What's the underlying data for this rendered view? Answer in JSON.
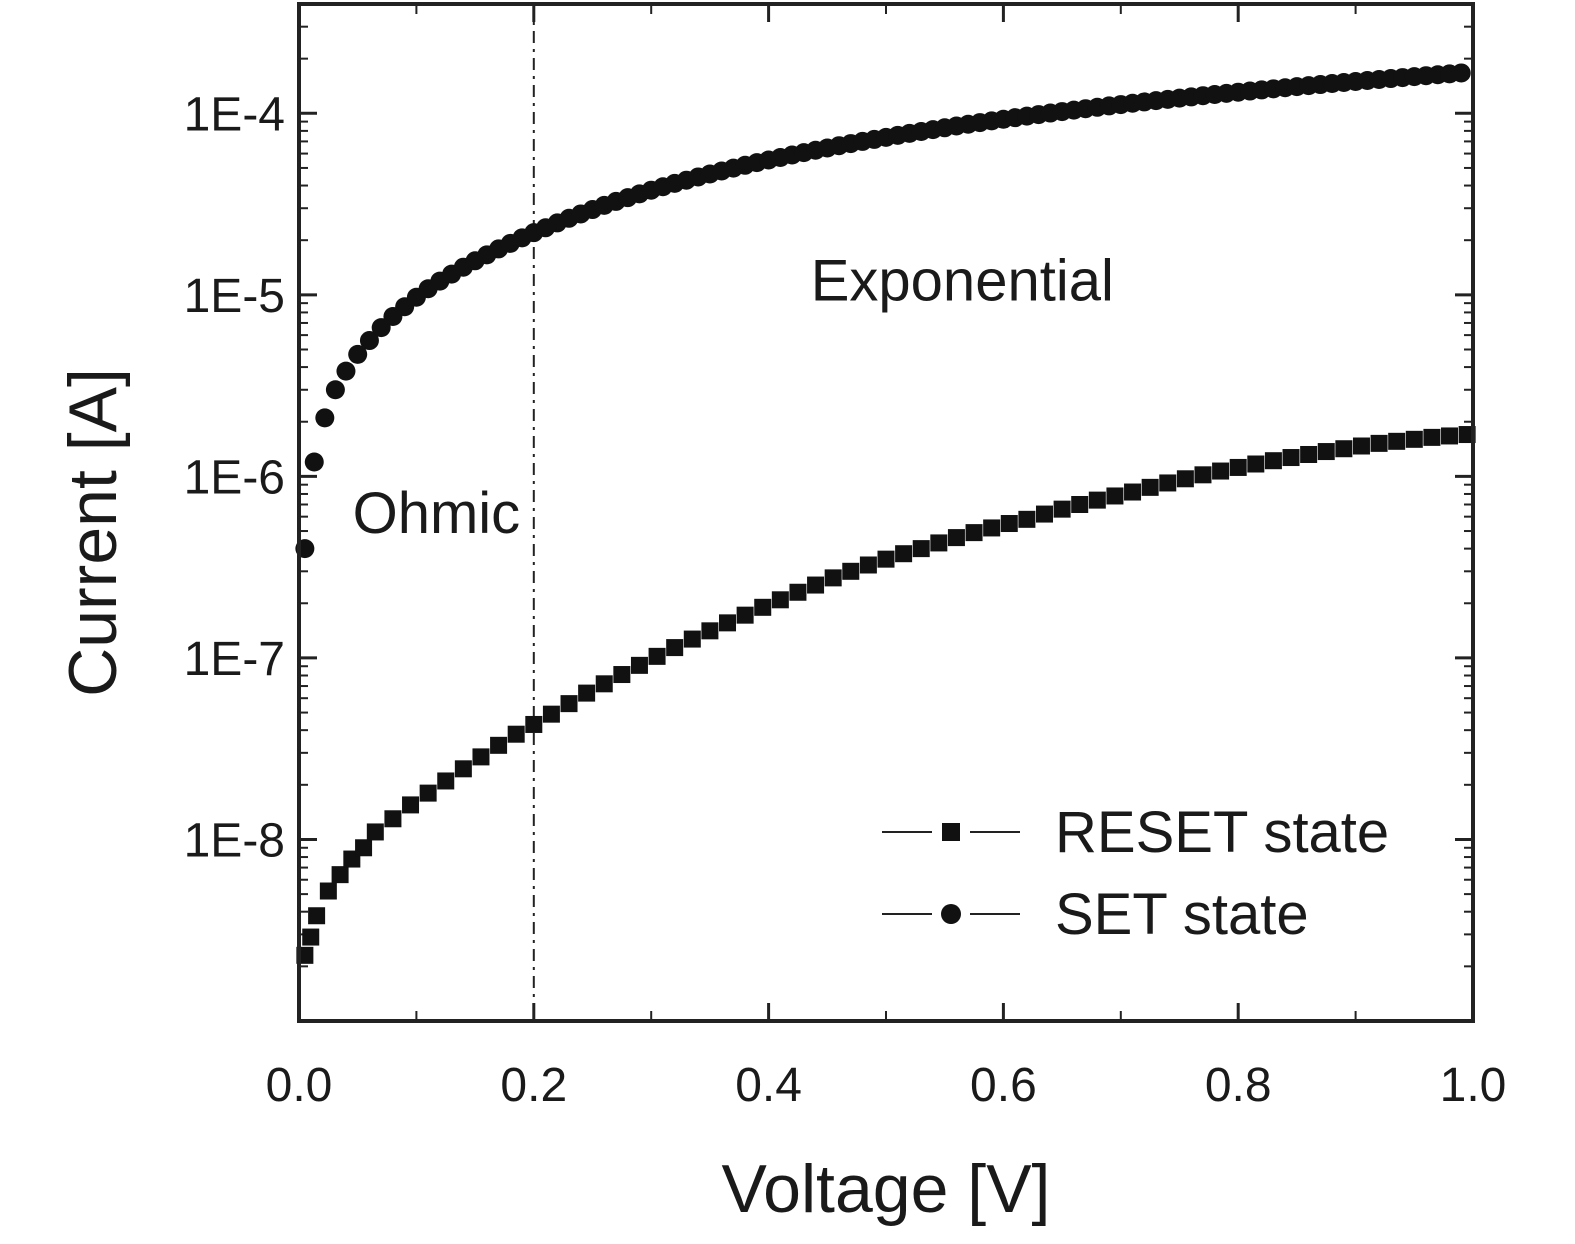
{
  "chart_data": {
    "type": "scatter",
    "xlabel": "Voltage [V]",
    "ylabel": "Current [A]",
    "xlim": [
      0,
      1.0
    ],
    "ylim": [
      1e-09,
      0.0004
    ],
    "yscale": "log",
    "xticks": [
      0.0,
      0.2,
      0.4,
      0.6,
      0.8,
      1.0
    ],
    "xtick_labels": [
      "0.0",
      "0.2",
      "0.4",
      "0.6",
      "0.8",
      "1.0"
    ],
    "yticks": [
      1e-08,
      1e-07,
      1e-06,
      1e-05,
      0.0001
    ],
    "ytick_labels": [
      "1E-8",
      "1E-7",
      "1E-6",
      "1E-5",
      "1E-4"
    ],
    "vline": {
      "x": 0.2,
      "style": "dashed"
    },
    "annotations": [
      {
        "text": "Ohmic",
        "x": 0.1,
        "y": 6.3e-07
      },
      {
        "text": "Exponential",
        "x": 0.565,
        "y": 1.2e-05
      }
    ],
    "legend": {
      "position": "bottom-right"
    },
    "series": [
      {
        "name": "RESET state",
        "marker": "square",
        "color": "#111111",
        "x": [
          0.005,
          0.01,
          0.015,
          0.025,
          0.035,
          0.045,
          0.055,
          0.065,
          0.08,
          0.095,
          0.11,
          0.125,
          0.14,
          0.155,
          0.17,
          0.185,
          0.2,
          0.215,
          0.23,
          0.245,
          0.26,
          0.275,
          0.29,
          0.305,
          0.32,
          0.335,
          0.35,
          0.365,
          0.38,
          0.395,
          0.41,
          0.425,
          0.44,
          0.455,
          0.47,
          0.485,
          0.5,
          0.515,
          0.53,
          0.545,
          0.56,
          0.575,
          0.59,
          0.605,
          0.62,
          0.635,
          0.65,
          0.665,
          0.68,
          0.695,
          0.71,
          0.725,
          0.74,
          0.755,
          0.77,
          0.785,
          0.8,
          0.815,
          0.83,
          0.845,
          0.86,
          0.875,
          0.89,
          0.905,
          0.92,
          0.935,
          0.95,
          0.965,
          0.98,
          0.995
        ],
        "y": [
          2.3e-09,
          2.9e-09,
          3.8e-09,
          5.2e-09,
          6.4e-09,
          7.8e-09,
          9e-09,
          1.1e-08,
          1.3e-08,
          1.55e-08,
          1.8e-08,
          2.1e-08,
          2.45e-08,
          2.85e-08,
          3.3e-08,
          3.8e-08,
          4.3e-08,
          4.9e-08,
          5.6e-08,
          6.4e-08,
          7.2e-08,
          8.1e-08,
          9.1e-08,
          1.02e-07,
          1.14e-07,
          1.27e-07,
          1.41e-07,
          1.56e-07,
          1.72e-07,
          1.9e-07,
          2.09e-07,
          2.3e-07,
          2.52e-07,
          2.76e-07,
          3e-07,
          3.25e-07,
          3.5e-07,
          3.75e-07,
          4e-07,
          4.3e-07,
          4.6e-07,
          4.9e-07,
          5.2e-07,
          5.5e-07,
          5.8e-07,
          6.2e-07,
          6.6e-07,
          7e-07,
          7.4e-07,
          7.8e-07,
          8.2e-07,
          8.7e-07,
          9.2e-07,
          9.7e-07,
          1.02e-06,
          1.07e-06,
          1.12e-06,
          1.17e-06,
          1.22e-06,
          1.27e-06,
          1.32e-06,
          1.37e-06,
          1.42e-06,
          1.47e-06,
          1.52e-06,
          1.56e-06,
          1.6e-06,
          1.64e-06,
          1.67e-06,
          1.7e-06
        ]
      },
      {
        "name": "SET state",
        "marker": "circle",
        "color": "#111111",
        "x": [
          0.005,
          0.013,
          0.022,
          0.031,
          0.04,
          0.05,
          0.06,
          0.07,
          0.08,
          0.09,
          0.1,
          0.11,
          0.12,
          0.13,
          0.14,
          0.15,
          0.16,
          0.17,
          0.18,
          0.19,
          0.2,
          0.21,
          0.22,
          0.23,
          0.24,
          0.25,
          0.26,
          0.27,
          0.28,
          0.29,
          0.3,
          0.31,
          0.32,
          0.33,
          0.34,
          0.35,
          0.36,
          0.37,
          0.38,
          0.39,
          0.4,
          0.41,
          0.42,
          0.43,
          0.44,
          0.45,
          0.46,
          0.47,
          0.48,
          0.49,
          0.5,
          0.51,
          0.52,
          0.53,
          0.54,
          0.55,
          0.56,
          0.57,
          0.58,
          0.59,
          0.6,
          0.61,
          0.62,
          0.63,
          0.64,
          0.65,
          0.66,
          0.67,
          0.68,
          0.69,
          0.7,
          0.71,
          0.72,
          0.73,
          0.74,
          0.75,
          0.76,
          0.77,
          0.78,
          0.79,
          0.8,
          0.81,
          0.82,
          0.83,
          0.84,
          0.85,
          0.86,
          0.87,
          0.88,
          0.89,
          0.9,
          0.91,
          0.92,
          0.93,
          0.94,
          0.95,
          0.96,
          0.97,
          0.98,
          0.99
        ],
        "y": [
          4e-07,
          1.2e-06,
          2.1e-06,
          3e-06,
          3.8e-06,
          4.7e-06,
          5.6e-06,
          6.6e-06,
          7.6e-06,
          8.6e-06,
          9.7e-06,
          1.08e-05,
          1.19e-05,
          1.3e-05,
          1.42e-05,
          1.54e-05,
          1.66e-05,
          1.79e-05,
          1.92e-05,
          2.06e-05,
          2.2e-05,
          2.34e-05,
          2.49e-05,
          2.64e-05,
          2.79e-05,
          2.95e-05,
          3.11e-05,
          3.27e-05,
          3.43e-05,
          3.6e-05,
          3.77e-05,
          3.94e-05,
          4.11e-05,
          4.28e-05,
          4.46e-05,
          4.63e-05,
          4.81e-05,
          4.99e-05,
          5.17e-05,
          5.35e-05,
          5.53e-05,
          5.71e-05,
          5.89e-05,
          6.07e-05,
          6.26e-05,
          6.44e-05,
          6.63e-05,
          6.81e-05,
          7e-05,
          7.18e-05,
          7.37e-05,
          7.56e-05,
          7.75e-05,
          7.94e-05,
          8.13e-05,
          8.32e-05,
          8.51e-05,
          8.7e-05,
          8.89e-05,
          9.08e-05,
          9.27e-05,
          9.46e-05,
          9.65e-05,
          9.84e-05,
          0.0001003,
          0.0001022,
          0.0001041,
          0.000106,
          0.0001079,
          0.0001098,
          0.0001117,
          0.0001136,
          0.0001155,
          0.0001174,
          0.0001193,
          0.0001212,
          0.0001231,
          0.000125,
          0.0001269,
          0.0001288,
          0.0001307,
          0.0001326,
          0.0001345,
          0.0001364,
          0.0001383,
          0.0001402,
          0.0001421,
          0.000144,
          0.0001459,
          0.0001478,
          0.0001497,
          0.0001516,
          0.0001535,
          0.0001554,
          0.0001573,
          0.0001592,
          0.0001611,
          0.000163,
          0.0001649,
          0.0001668
        ]
      }
    ]
  }
}
